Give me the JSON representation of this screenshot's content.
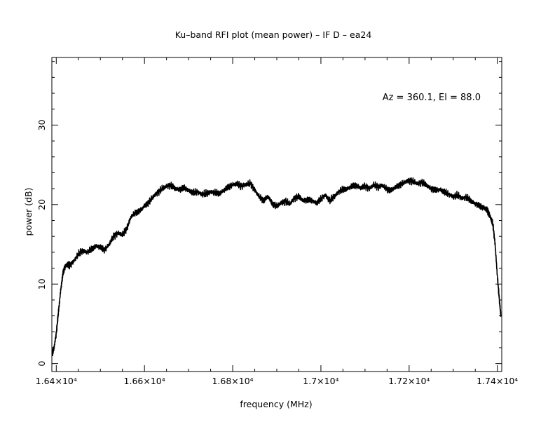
{
  "chart_data": {
    "type": "line",
    "title": "Ku–band RFI plot (mean power) – IF D – ea24",
    "annotation": "Az = 360.1, El = 88.0",
    "xlabel": "frequency (MHz)",
    "ylabel": "power (dB)",
    "xlim": [
      16390,
      17410
    ],
    "ylim": [
      -1,
      38.5
    ],
    "x_ticks": [
      {
        "value": 16400,
        "label": "1.64×10⁴"
      },
      {
        "value": 16600,
        "label": "1.66×10⁴"
      },
      {
        "value": 16800,
        "label": "1.68×10⁴"
      },
      {
        "value": 17000,
        "label": "1.7×10⁴"
      },
      {
        "value": 17200,
        "label": "1.72×10⁴"
      },
      {
        "value": 17400,
        "label": "1.74×10⁴"
      }
    ],
    "y_ticks": [
      {
        "value": 0,
        "label": "0"
      },
      {
        "value": 10,
        "label": "10"
      },
      {
        "value": 20,
        "label": "20"
      },
      {
        "value": 30,
        "label": "30"
      }
    ],
    "grid": false,
    "line_color": "#000000",
    "series": [
      {
        "x": [
          16391,
          16395,
          16400,
          16405,
          16410,
          16415,
          16420,
          16425,
          16430,
          16440,
          16450,
          16460,
          16470,
          16480,
          16490,
          16500,
          16510,
          16520,
          16530,
          16540,
          16550,
          16560,
          16570,
          16580,
          16590,
          16600,
          16610,
          16620,
          16630,
          16640,
          16650,
          16660,
          16670,
          16680,
          16690,
          16700,
          16710,
          16720,
          16730,
          16740,
          16750,
          16760,
          16770,
          16780,
          16790,
          16800,
          16810,
          16820,
          16830,
          16840,
          16850,
          16860,
          16870,
          16880,
          16890,
          16900,
          16910,
          16920,
          16930,
          16940,
          16950,
          16960,
          16970,
          16980,
          16990,
          17000,
          17010,
          17020,
          17030,
          17040,
          17050,
          17060,
          17070,
          17080,
          17090,
          17100,
          17110,
          17120,
          17130,
          17140,
          17150,
          17160,
          17170,
          17180,
          17190,
          17200,
          17210,
          17220,
          17230,
          17240,
          17250,
          17260,
          17270,
          17280,
          17290,
          17300,
          17310,
          17320,
          17330,
          17340,
          17350,
          17360,
          17370,
          17375,
          17380,
          17385,
          17390,
          17395,
          17400,
          17405,
          17408
        ],
        "y": [
          1.2,
          2.0,
          3.8,
          6.5,
          9.2,
          11.3,
          12.2,
          12.5,
          12.3,
          12.9,
          13.8,
          14.2,
          14.0,
          14.4,
          14.8,
          14.6,
          14.3,
          15.0,
          16.0,
          16.4,
          16.2,
          17.0,
          18.5,
          19.0,
          19.2,
          19.8,
          20.3,
          21.0,
          21.5,
          22.0,
          22.3,
          22.4,
          22.0,
          21.9,
          22.1,
          21.8,
          21.5,
          21.6,
          21.3,
          21.4,
          21.6,
          21.5,
          21.4,
          21.8,
          22.2,
          22.5,
          22.6,
          22.3,
          22.5,
          22.7,
          21.8,
          21.0,
          20.5,
          21.0,
          20.1,
          19.8,
          20.2,
          20.4,
          20.1,
          20.8,
          21.0,
          20.5,
          20.6,
          20.5,
          20.2,
          20.7,
          21.2,
          20.5,
          21.0,
          21.6,
          21.9,
          22.0,
          22.3,
          22.4,
          22.1,
          22.3,
          22.0,
          22.5,
          22.2,
          22.4,
          21.9,
          21.8,
          22.2,
          22.5,
          22.8,
          23.0,
          22.9,
          22.6,
          22.8,
          22.4,
          22.0,
          21.8,
          21.9,
          21.6,
          21.3,
          21.0,
          21.2,
          20.8,
          20.9,
          20.5,
          20.1,
          19.8,
          19.6,
          19.4,
          19.0,
          18.3,
          17.5,
          15.0,
          11.0,
          7.8,
          6.0
        ]
      }
    ]
  }
}
